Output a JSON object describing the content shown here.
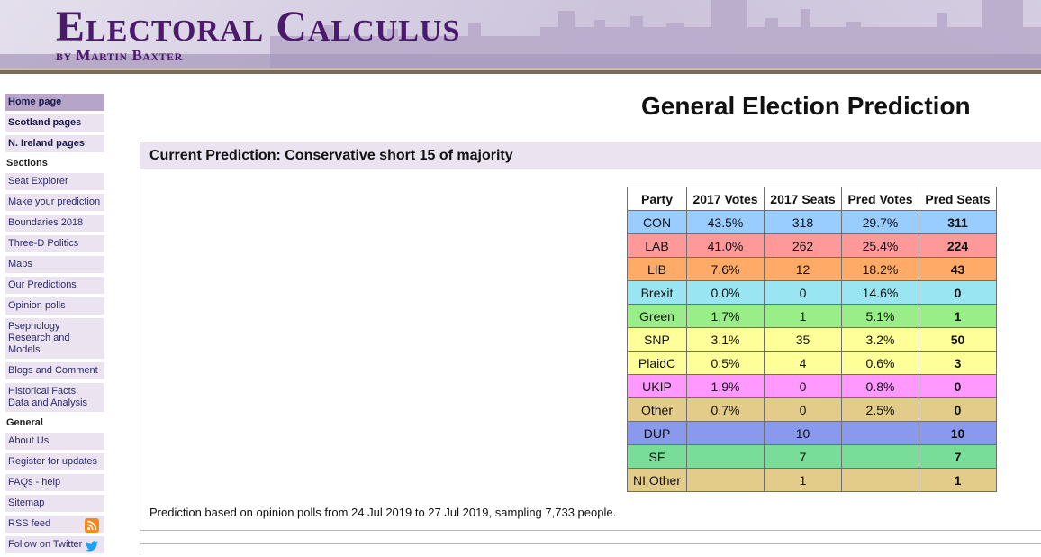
{
  "site": {
    "title": "Electoral Calculus",
    "subtitle": "by Martin Baxter"
  },
  "sidebar": {
    "top_items": [
      "Home page",
      "Scotland pages",
      "N. Ireland pages"
    ],
    "sections_heading": "Sections",
    "sections": [
      "Seat Explorer",
      "Make your prediction",
      "Boundaries 2018",
      "Three-D Politics",
      "Maps",
      "Our Predictions",
      "Opinion polls",
      "Psephology Research and Models",
      "Blogs and Comment",
      "Historical Facts, Data and Analysis"
    ],
    "general_heading": "General",
    "general": [
      "About Us",
      "Register for updates",
      "FAQs - help",
      "Sitemap",
      "RSS feed",
      "Follow on Twitter"
    ]
  },
  "page_title": "General Election Prediction",
  "prediction": {
    "header": "Current Prediction: Conservative short 15 of majority",
    "footnote": "Prediction based on opinion polls from 24 Jul 2019 to 27 Jul 2019, sampling 7,733 people."
  },
  "table": {
    "columns": [
      "Party",
      "2017 Votes",
      "2017 Seats",
      "Pred Votes",
      "Pred Seats"
    ],
    "rows": [
      {
        "party": "CON",
        "votes2017": "43.5%",
        "seats2017": "318",
        "predVotes": "29.7%",
        "predSeats": "311",
        "color": "#99ccff"
      },
      {
        "party": "LAB",
        "votes2017": "41.0%",
        "seats2017": "262",
        "predVotes": "25.4%",
        "predSeats": "224",
        "color": "#ff9999"
      },
      {
        "party": "LIB",
        "votes2017": "7.6%",
        "seats2017": "12",
        "predVotes": "18.2%",
        "predSeats": "43",
        "color": "#ffaa66"
      },
      {
        "party": "Brexit",
        "votes2017": "0.0%",
        "seats2017": "0",
        "predVotes": "14.6%",
        "predSeats": "0",
        "color": "#99e6f2"
      },
      {
        "party": "Green",
        "votes2017": "1.7%",
        "seats2017": "1",
        "predVotes": "5.1%",
        "predSeats": "1",
        "color": "#99ee88"
      },
      {
        "party": "SNP",
        "votes2017": "3.1%",
        "seats2017": "35",
        "predVotes": "3.2%",
        "predSeats": "50",
        "color": "#ffff99"
      },
      {
        "party": "PlaidC",
        "votes2017": "0.5%",
        "seats2017": "4",
        "predVotes": "0.6%",
        "predSeats": "3",
        "color": "#ffff99"
      },
      {
        "party": "UKIP",
        "votes2017": "1.9%",
        "seats2017": "0",
        "predVotes": "0.8%",
        "predSeats": "0",
        "color": "#ff99ff"
      },
      {
        "party": "Other",
        "votes2017": "0.7%",
        "seats2017": "0",
        "predVotes": "2.5%",
        "predSeats": "0",
        "color": "#e3cc8a"
      },
      {
        "party": "DUP",
        "votes2017": "",
        "seats2017": "10",
        "predVotes": "",
        "predSeats": "10",
        "color": "#8899ee"
      },
      {
        "party": "SF",
        "votes2017": "",
        "seats2017": "7",
        "predVotes": "",
        "predSeats": "7",
        "color": "#77dd99"
      },
      {
        "party": "NI Other",
        "votes2017": "",
        "seats2017": "1",
        "predVotes": "",
        "predSeats": "1",
        "color": "#e3cc8a"
      }
    ]
  },
  "icons": {
    "rss": "rss-icon",
    "twitter": "twitter-bird-icon"
  },
  "colors": {
    "brand": "#4b1a6b",
    "nav_bg": "#ece3f1",
    "nav_active": "#b6a4c9"
  }
}
